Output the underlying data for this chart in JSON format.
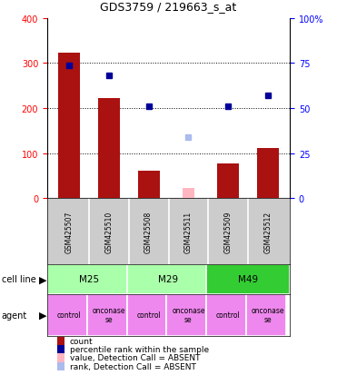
{
  "title": "GDS3759 / 219663_s_at",
  "samples": [
    "GSM425507",
    "GSM425510",
    "GSM425508",
    "GSM425511",
    "GSM425509",
    "GSM425512"
  ],
  "count_values": [
    322,
    222,
    62,
    null,
    78,
    112
  ],
  "count_absent_values": [
    null,
    null,
    null,
    22,
    null,
    null
  ],
  "rank_values": [
    295,
    272,
    204,
    null,
    204,
    228
  ],
  "rank_absent_values": [
    null,
    null,
    null,
    136,
    null,
    null
  ],
  "bar_color": "#aa1111",
  "bar_absent_color": "#ffb6c1",
  "rank_color": "#000099",
  "rank_absent_color": "#aabbee",
  "ylim_left": [
    0,
    400
  ],
  "ylim_right": [
    0,
    100
  ],
  "yticks_left": [
    0,
    100,
    200,
    300,
    400
  ],
  "yticks_right": [
    0,
    25,
    50,
    75,
    100
  ],
  "ytick_right_labels": [
    "0",
    "25",
    "50",
    "75",
    "100%"
  ],
  "cell_line_data": [
    {
      "label": "M25",
      "start": 0,
      "end": 2,
      "color": "#aaffaa"
    },
    {
      "label": "M29",
      "start": 2,
      "end": 4,
      "color": "#aaffaa"
    },
    {
      "label": "M49",
      "start": 4,
      "end": 6,
      "color": "#33cc33"
    }
  ],
  "agents": [
    "control",
    "onconase\nse",
    "control",
    "onconase\nse",
    "control",
    "onconase\nse"
  ],
  "agent_color": "#ee88ee",
  "sample_label_bg": "#cccccc",
  "legend_items": [
    {
      "color": "#aa1111",
      "label": "count"
    },
    {
      "color": "#000099",
      "label": "percentile rank within the sample"
    },
    {
      "color": "#ffb6c1",
      "label": "value, Detection Call = ABSENT"
    },
    {
      "color": "#aabbee",
      "label": "rank, Detection Call = ABSENT"
    }
  ]
}
